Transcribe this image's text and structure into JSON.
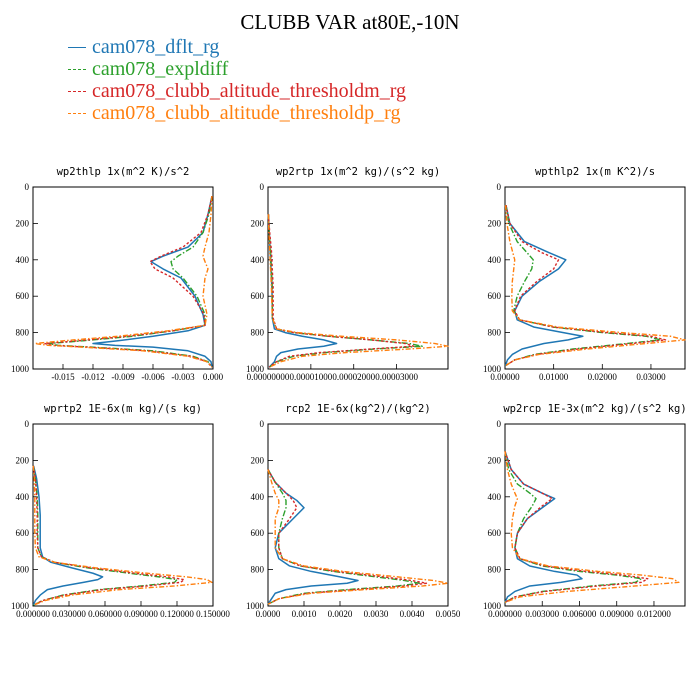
{
  "figure": {
    "title": "CLUBB VAR at80E,-10N",
    "colors": {
      "dflt": "#1f77b4",
      "expldiff": "#2ca02c",
      "altm": "#d62728",
      "altp": "#ff7f0e"
    },
    "legend": [
      {
        "label": "cam078_dflt_rg",
        "color": "#1f77b4",
        "style": "solid"
      },
      {
        "label": "cam078_expldiff",
        "color": "#2ca02c",
        "style": "dashdot"
      },
      {
        "label": "cam078_clubb_altitude_thresholdm_rg",
        "color": "#d62728",
        "style": "dashed"
      },
      {
        "label": "cam078_clubb_altitude_thresholdp_rg",
        "color": "#ff7f0e",
        "style": "dashdot"
      }
    ]
  },
  "chart_data": [
    {
      "type": "line",
      "title": "wp2thlp  1x(m^2 K)/s^2",
      "xlim": [
        -0.018,
        0.0
      ],
      "ylim": [
        1000,
        0
      ],
      "yticks": [
        0,
        200,
        400,
        600,
        800,
        1000
      ],
      "xtick_labels": [
        "-0.015",
        "-0.012",
        "-0.009",
        "-0.006",
        "-0.003",
        "0.000"
      ],
      "xtick_values": [
        -0.015,
        -0.012,
        -0.009,
        -0.006,
        -0.003,
        0.0
      ],
      "y": [
        50,
        150,
        250,
        330,
        380,
        410,
        450,
        500,
        600,
        700,
        760,
        790,
        820,
        845,
        860,
        870,
        880,
        900,
        930,
        960,
        990
      ],
      "series": [
        {
          "name": "cam078_dflt_rg",
          "values": [
            -0.0001,
            -0.0005,
            -0.001,
            -0.0025,
            -0.005,
            -0.0062,
            -0.005,
            -0.0032,
            -0.0018,
            -0.001,
            -0.0008,
            -0.0025,
            -0.006,
            -0.0095,
            -0.012,
            -0.0098,
            -0.006,
            -0.0025,
            -0.0008,
            -0.0002,
            -0.0001
          ]
        },
        {
          "name": "cam078_expldiff",
          "values": [
            -0.0001,
            -0.0004,
            -0.001,
            -0.002,
            -0.0035,
            -0.0042,
            -0.004,
            -0.003,
            -0.0016,
            -0.0008,
            -0.0008,
            -0.004,
            -0.008,
            -0.013,
            -0.0165,
            -0.0155,
            -0.012,
            -0.006,
            -0.002,
            -0.0005,
            -0.0001
          ]
        },
        {
          "name": "cam078_clubb_altitude_thresholdm_rg",
          "values": [
            -0.0001,
            -0.0005,
            -0.0012,
            -0.003,
            -0.0052,
            -0.0063,
            -0.0058,
            -0.004,
            -0.002,
            -0.0009,
            -0.0008,
            -0.004,
            -0.0085,
            -0.0135,
            -0.0168,
            -0.016,
            -0.0125,
            -0.0065,
            -0.0022,
            -0.0006,
            -0.0001
          ]
        },
        {
          "name": "cam078_clubb_altitude_thresholdp_rg",
          "values": [
            -0.0001,
            -0.0002,
            -0.0004,
            -0.0008,
            -0.001,
            -0.0008,
            -0.0005,
            -0.0008,
            -0.001,
            -0.0006,
            -0.0008,
            -0.0045,
            -0.0095,
            -0.015,
            -0.0178,
            -0.0165,
            -0.013,
            -0.007,
            -0.0025,
            -0.0006,
            -0.0001
          ]
        }
      ]
    },
    {
      "type": "line",
      "title": "wp2rtp  1x(m^2 kg)/(s^2 kg)",
      "xlim": [
        0.0,
        4.2e-05
      ],
      "ylim": [
        1000,
        0
      ],
      "yticks": [
        0,
        200,
        400,
        600,
        800,
        1000
      ],
      "xtick_labels": [
        "0.00000000",
        "0.00001000",
        "0.00002000",
        "0.00003000"
      ],
      "xtick_values": [
        0.0,
        1e-05,
        2e-05,
        3e-05
      ],
      "y": [
        150,
        250,
        350,
        450,
        550,
        650,
        720,
        780,
        800,
        820,
        840,
        860,
        875,
        890,
        910,
        930,
        960,
        990
      ],
      "series": [
        {
          "name": "cam078_dflt_rg",
          "values": [
            1e-07,
            3e-07,
            5e-07,
            7e-07,
            9e-07,
            1e-06,
            1e-06,
            1.5e-06,
            4e-06,
            8e-06,
            1.3e-05,
            1.6e-05,
            1.3e-05,
            7e-06,
            3e-06,
            2e-06,
            1.5e-06,
            3e-07
          ]
        },
        {
          "name": "cam078_expldiff",
          "values": [
            1e-07,
            3e-07,
            6e-07,
            8e-07,
            1e-06,
            1e-06,
            1e-06,
            2e-06,
            6e-06,
            1.4e-05,
            2.4e-05,
            3.3e-05,
            3.6e-05,
            2.5e-05,
            1.3e-05,
            6e-06,
            2e-06,
            3e-07
          ]
        },
        {
          "name": "cam078_clubb_altitude_thresholdm_rg",
          "values": [
            1e-07,
            4e-07,
            8e-07,
            1e-06,
            1.2e-06,
            1.2e-06,
            1.2e-06,
            2e-06,
            6e-06,
            1.4e-05,
            2.4e-05,
            3.2e-05,
            3.4e-05,
            2.4e-05,
            1.2e-05,
            5e-06,
            2e-06,
            3e-07
          ]
        },
        {
          "name": "cam078_clubb_altitude_thresholdp_rg",
          "values": [
            1e-07,
            2e-07,
            4e-07,
            6e-07,
            8e-07,
            9e-07,
            1e-06,
            2e-06,
            7e-06,
            1.7e-05,
            3e-05,
            3.9e-05,
            4.2e-05,
            3.3e-05,
            1.8e-05,
            8e-06,
            3e-06,
            3e-07
          ]
        }
      ]
    },
    {
      "type": "line",
      "title": "wpthlp2  1x(m K^2)/s",
      "xlim": [
        0.0,
        0.037
      ],
      "ylim": [
        1000,
        0
      ],
      "yticks": [
        0,
        200,
        400,
        600,
        800,
        1000
      ],
      "xtick_labels": [
        "0.00000",
        "0.01000",
        "0.02000",
        "0.03000"
      ],
      "xtick_values": [
        0.0,
        0.01,
        0.02,
        0.03
      ],
      "y": [
        100,
        200,
        300,
        360,
        400,
        450,
        520,
        600,
        680,
        730,
        770,
        800,
        820,
        840,
        860,
        890,
        920,
        950,
        980
      ],
      "series": [
        {
          "name": "cam078_dflt_rg",
          "values": [
            0.0002,
            0.001,
            0.004,
            0.009,
            0.0125,
            0.011,
            0.007,
            0.0035,
            0.002,
            0.0025,
            0.006,
            0.012,
            0.016,
            0.013,
            0.008,
            0.0035,
            0.0015,
            0.0005,
            0.0001
          ]
        },
        {
          "name": "cam078_expldiff",
          "values": [
            0.0002,
            0.0008,
            0.0025,
            0.0045,
            0.0058,
            0.0055,
            0.004,
            0.0025,
            0.0018,
            0.003,
            0.01,
            0.02,
            0.029,
            0.032,
            0.025,
            0.014,
            0.006,
            0.002,
            0.0002
          ]
        },
        {
          "name": "cam078_clubb_altitude_thresholdm_rg",
          "values": [
            0.0002,
            0.001,
            0.0035,
            0.0075,
            0.011,
            0.01,
            0.0065,
            0.0032,
            0.002,
            0.003,
            0.01,
            0.021,
            0.03,
            0.033,
            0.026,
            0.015,
            0.0065,
            0.002,
            0.0002
          ]
        },
        {
          "name": "cam078_clubb_altitude_thresholdp_rg",
          "values": [
            0.0001,
            0.0004,
            0.001,
            0.0016,
            0.002,
            0.0018,
            0.0015,
            0.0014,
            0.0015,
            0.003,
            0.011,
            0.024,
            0.034,
            0.037,
            0.029,
            0.017,
            0.007,
            0.002,
            0.0002
          ]
        }
      ]
    },
    {
      "type": "line",
      "title": "wprtp2  1E-6x(m kg)/(s kg)",
      "xlim": [
        0.0,
        0.15
      ],
      "ylim": [
        1000,
        0
      ],
      "yticks": [
        0,
        200,
        400,
        600,
        800,
        1000
      ],
      "xtick_labels": [
        "0.000000",
        "0.030000",
        "0.060000",
        "0.090000",
        "0.120000",
        "0.150000"
      ],
      "xtick_values": [
        0.0,
        0.03,
        0.06,
        0.09,
        0.12,
        0.15
      ],
      "y": [
        230,
        300,
        400,
        500,
        600,
        680,
        730,
        760,
        790,
        820,
        840,
        855,
        870,
        890,
        910,
        940,
        970,
        995
      ],
      "series": [
        {
          "name": "cam078_dflt_rg",
          "values": [
            0.0005,
            0.003,
            0.005,
            0.006,
            0.006,
            0.006,
            0.008,
            0.015,
            0.032,
            0.05,
            0.058,
            0.054,
            0.042,
            0.025,
            0.012,
            0.006,
            0.002,
            0.0003
          ]
        },
        {
          "name": "cam078_expldiff",
          "values": [
            0.0003,
            0.002,
            0.0035,
            0.004,
            0.004,
            0.004,
            0.007,
            0.018,
            0.045,
            0.08,
            0.105,
            0.12,
            0.118,
            0.09,
            0.055,
            0.025,
            0.008,
            0.0005
          ]
        },
        {
          "name": "cam078_clubb_altitude_thresholdm_rg",
          "values": [
            0.0003,
            0.002,
            0.003,
            0.0035,
            0.0035,
            0.004,
            0.007,
            0.018,
            0.048,
            0.085,
            0.112,
            0.126,
            0.123,
            0.095,
            0.058,
            0.026,
            0.008,
            0.0005
          ]
        },
        {
          "name": "cam078_clubb_altitude_thresholdp_rg",
          "values": [
            0.0002,
            0.001,
            0.0015,
            0.0015,
            0.0015,
            0.002,
            0.005,
            0.018,
            0.052,
            0.095,
            0.128,
            0.145,
            0.149,
            0.118,
            0.072,
            0.032,
            0.01,
            0.0005
          ]
        }
      ]
    },
    {
      "type": "line",
      "title": "rcp2  1E-6x(kg^2)/(kg^2)",
      "xlim": [
        0.0,
        0.005
      ],
      "ylim": [
        1000,
        0
      ],
      "yticks": [
        0,
        200,
        400,
        600,
        800,
        1000
      ],
      "xtick_labels": [
        "0.0000",
        "0.0010",
        "0.0020",
        "0.0030",
        "0.0040",
        "0.0050"
      ],
      "xtick_values": [
        0.0,
        0.001,
        0.002,
        0.003,
        0.004,
        0.005
      ],
      "y": [
        250,
        320,
        380,
        420,
        460,
        520,
        600,
        680,
        740,
        780,
        810,
        840,
        860,
        875,
        890,
        910,
        930,
        960,
        990
      ],
      "series": [
        {
          "name": "cam078_dflt_rg",
          "values": [
            0.0,
            0.0002,
            0.0005,
            0.0008,
            0.001,
            0.0007,
            0.0003,
            0.0002,
            0.0003,
            0.0006,
            0.0012,
            0.002,
            0.0025,
            0.0022,
            0.0012,
            0.0005,
            0.0002,
            0.0001,
            0.0
          ]
        },
        {
          "name": "cam078_expldiff",
          "values": [
            0.0,
            0.0002,
            0.0004,
            0.0005,
            0.0005,
            0.0004,
            0.0003,
            0.0003,
            0.0004,
            0.0009,
            0.0018,
            0.003,
            0.0038,
            0.0042,
            0.0036,
            0.0022,
            0.001,
            0.0003,
            0.0
          ]
        },
        {
          "name": "cam078_clubb_altitude_thresholdm_rg",
          "values": [
            0.0,
            0.0002,
            0.0005,
            0.0007,
            0.0008,
            0.0006,
            0.0003,
            0.0003,
            0.0004,
            0.0009,
            0.0019,
            0.0032,
            0.004,
            0.0044,
            0.0038,
            0.0024,
            0.0011,
            0.0003,
            0.0
          ]
        },
        {
          "name": "cam078_clubb_altitude_thresholdp_rg",
          "values": [
            0.0,
            0.0001,
            0.0002,
            0.0003,
            0.0003,
            0.0002,
            0.0002,
            0.0002,
            0.0004,
            0.001,
            0.0021,
            0.0036,
            0.0046,
            0.005,
            0.0043,
            0.0027,
            0.0012,
            0.0003,
            0.0
          ]
        }
      ]
    },
    {
      "type": "line",
      "title": "wp2rcp  1E-3x(m^2 kg)/(s^2 kg)",
      "xlim": [
        0.0,
        0.0145
      ],
      "ylim": [
        1000,
        0
      ],
      "yticks": [
        0,
        200,
        400,
        600,
        800,
        1000
      ],
      "xtick_labels": [
        "0.000000",
        "0.003000",
        "0.006000",
        "0.009000",
        "0.012000"
      ],
      "xtick_values": [
        0.0,
        0.003,
        0.006,
        0.009,
        0.012
      ],
      "y": [
        150,
        250,
        330,
        380,
        410,
        450,
        520,
        600,
        680,
        740,
        780,
        810,
        830,
        850,
        870,
        890,
        920,
        950,
        980
      ],
      "series": [
        {
          "name": "cam078_dflt_rg",
          "values": [
            0.0,
            0.0005,
            0.0015,
            0.003,
            0.004,
            0.0032,
            0.0018,
            0.001,
            0.0008,
            0.001,
            0.002,
            0.004,
            0.0058,
            0.0062,
            0.0045,
            0.002,
            0.0008,
            0.0002,
            0.0
          ]
        },
        {
          "name": "cam078_expldiff",
          "values": [
            0.0,
            0.0003,
            0.001,
            0.002,
            0.0025,
            0.0022,
            0.0015,
            0.001,
            0.0008,
            0.0012,
            0.003,
            0.006,
            0.009,
            0.011,
            0.0105,
            0.007,
            0.003,
            0.0008,
            0.0
          ]
        },
        {
          "name": "cam078_clubb_altitude_thresholdm_rg",
          "values": [
            0.0,
            0.0005,
            0.0015,
            0.003,
            0.0038,
            0.003,
            0.0018,
            0.001,
            0.0008,
            0.0012,
            0.0032,
            0.0065,
            0.0095,
            0.0115,
            0.011,
            0.0075,
            0.0032,
            0.0008,
            0.0
          ]
        },
        {
          "name": "cam078_clubb_altitude_thresholdp_rg",
          "values": [
            0.0,
            0.0002,
            0.0005,
            0.0008,
            0.001,
            0.0008,
            0.0006,
            0.0005,
            0.0006,
            0.0012,
            0.0035,
            0.0075,
            0.011,
            0.0135,
            0.014,
            0.0105,
            0.005,
            0.0012,
            0.0
          ]
        }
      ]
    }
  ]
}
